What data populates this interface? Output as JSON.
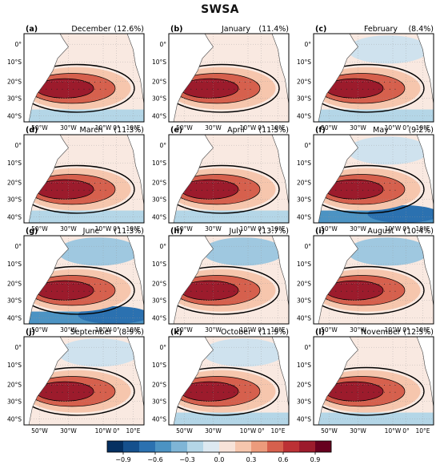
{
  "figure": {
    "title": "SWSA"
  },
  "panels": [
    {
      "letter": "(a)",
      "month": "December",
      "pct": "(12.6%)"
    },
    {
      "letter": "(b)",
      "month": "January",
      "pct": "(11.4%)"
    },
    {
      "letter": "(c)",
      "month": "February",
      "pct": "(8.4%)"
    },
    {
      "letter": "(d)",
      "month": "March",
      "pct": "(11.3%)"
    },
    {
      "letter": "(e)",
      "month": "April",
      "pct": "(11.5%)"
    },
    {
      "letter": "(f)",
      "month": "May",
      "pct": "(9.2%)"
    },
    {
      "letter": "(g)",
      "month": "June",
      "pct": "(11.3%)"
    },
    {
      "letter": "(h)",
      "month": "July",
      "pct": "(13.7%)"
    },
    {
      "letter": "(i)",
      "month": "August",
      "pct": "(10.4%)"
    },
    {
      "letter": "(j)",
      "month": "September",
      "pct": "(8.9%)"
    },
    {
      "letter": "(k)",
      "month": "October",
      "pct": "(11.9%)"
    },
    {
      "letter": "(l)",
      "month": "November",
      "pct": "(12.5%)"
    }
  ],
  "axes": {
    "lat_ticks": [
      "0°",
      "10°S",
      "20°S",
      "30°S",
      "40°S"
    ],
    "lon_ticks": [
      "50°W",
      "30°W",
      "10°W",
      "0°",
      "10°E"
    ]
  },
  "colorbar": {
    "ticks": [
      "−0.9",
      "−0.6",
      "−0.3",
      "0.0",
      "0.3",
      "0.6",
      "0.9"
    ],
    "colors": [
      "#053061",
      "#15508d",
      "#2b71b0",
      "#4c93c3",
      "#7fb5d6",
      "#b4d6e7",
      "#dde9f1",
      "#f7e3d9",
      "#f6c6ad",
      "#ec9b7c",
      "#d6604d",
      "#bc3135",
      "#9c1b2c",
      "#67001f"
    ]
  }
}
